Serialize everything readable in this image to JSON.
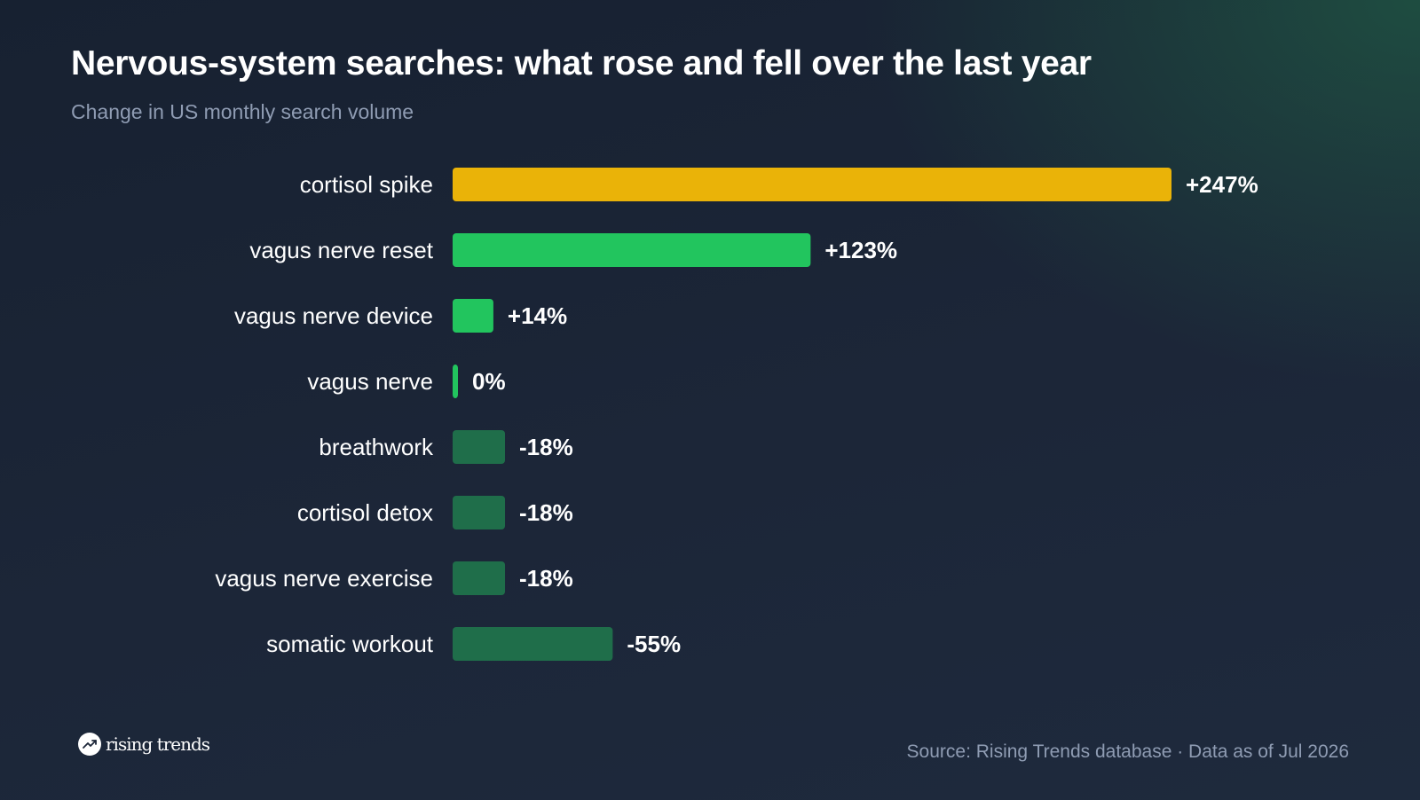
{
  "chart_data": {
    "type": "bar",
    "orientation": "horizontal",
    "title": "Nervous-system searches: what rose and fell over the last year",
    "subtitle": "Change in US monthly search volume",
    "categories": [
      "cortisol spike",
      "vagus nerve reset",
      "vagus nerve device",
      "vagus nerve",
      "breathwork",
      "cortisol detox",
      "vagus nerve exercise",
      "somatic workout"
    ],
    "values": [
      247,
      123,
      14,
      0,
      -18,
      -18,
      -18,
      -55
    ],
    "value_labels": [
      "+247%",
      "+123%",
      "+14%",
      "0%",
      "-18%",
      "-18%",
      "-18%",
      "-55%"
    ],
    "bar_colors": [
      "#eab308",
      "#22c55e",
      "#22c55e",
      "#22c55e",
      "#1f6e4a",
      "#1f6e4a",
      "#1f6e4a",
      "#1f6e4a"
    ],
    "xlabel": "",
    "ylabel": "",
    "grid": false,
    "legend": "none"
  },
  "footer": {
    "source": "Source: Rising Trends database · Data as of Jul 2026",
    "brand": "rising trends",
    "brand_icon": "trending-up-icon"
  }
}
